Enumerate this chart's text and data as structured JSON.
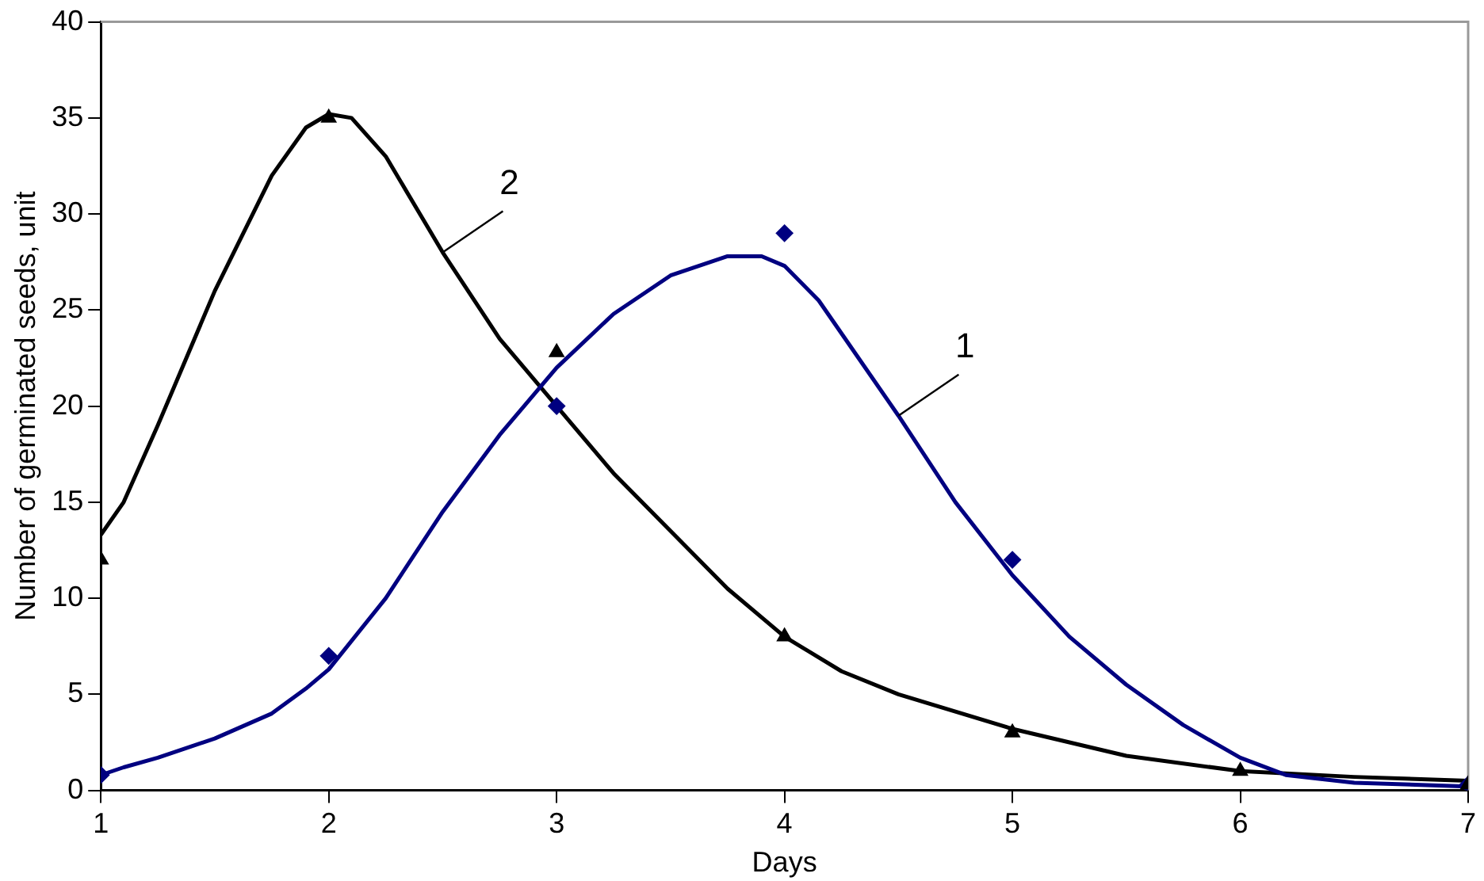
{
  "chart_data": {
    "type": "scatter",
    "xlabel": "Days",
    "ylabel": "Number of germinated seeds, unit",
    "xlim": [
      1,
      7
    ],
    "xticks": [
      1,
      2,
      3,
      4,
      5,
      6,
      7
    ],
    "ylim": [
      0,
      40
    ],
    "yticks": [
      0,
      5,
      10,
      15,
      20,
      25,
      30,
      35,
      40
    ],
    "grid": false,
    "legend": false,
    "series": [
      {
        "marker": "diamond",
        "color": "#000080",
        "x": [
          1,
          2,
          3,
          4,
          5,
          7
        ],
        "values": [
          0.8,
          7,
          20,
          29,
          12,
          0.3
        ]
      },
      {
        "marker": "triangle",
        "color": "#000000",
        "x": [
          1,
          2,
          3,
          4,
          5,
          6,
          7
        ],
        "values": [
          12,
          35,
          22.8,
          8,
          3,
          1,
          0.3
        ]
      },
      {
        "type": "line",
        "marker": "none",
        "color": "#000080",
        "x": [
          1,
          1.1,
          1.25,
          1.5,
          1.75,
          1.9,
          2,
          2.25,
          2.5,
          2.75,
          3,
          3.25,
          3.5,
          3.75,
          3.9,
          4,
          4.15,
          4.5,
          4.75,
          5,
          5.25,
          5.5,
          5.75,
          6,
          6.2,
          6.5,
          7
        ],
        "values": [
          0.8,
          1.2,
          1.7,
          2.7,
          4,
          5.3,
          6.3,
          10,
          14.5,
          18.5,
          22,
          24.8,
          26.8,
          27.8,
          27.8,
          27.3,
          25.5,
          19.5,
          15,
          11.2,
          8,
          5.5,
          3.4,
          1.7,
          0.8,
          0.4,
          0.2
        ]
      },
      {
        "type": "line",
        "marker": "none",
        "color": "#000000",
        "x": [
          1,
          1.1,
          1.25,
          1.5,
          1.75,
          1.9,
          2,
          2.1,
          2.25,
          2.5,
          2.75,
          3,
          3.25,
          3.5,
          3.75,
          4,
          4.25,
          4.5,
          5,
          5.5,
          6,
          6.5,
          7
        ],
        "values": [
          13.3,
          15,
          19,
          26,
          32,
          34.5,
          35.2,
          35,
          33,
          28,
          23.5,
          20,
          16.5,
          13.5,
          10.5,
          8,
          6.2,
          5,
          3.2,
          1.8,
          1,
          0.7,
          0.5
        ]
      }
    ],
    "annotations": [
      {
        "text": "1",
        "x": 4.5,
        "y": 19.5
      },
      {
        "text": "2",
        "x": 2.5,
        "y": 28
      }
    ]
  }
}
